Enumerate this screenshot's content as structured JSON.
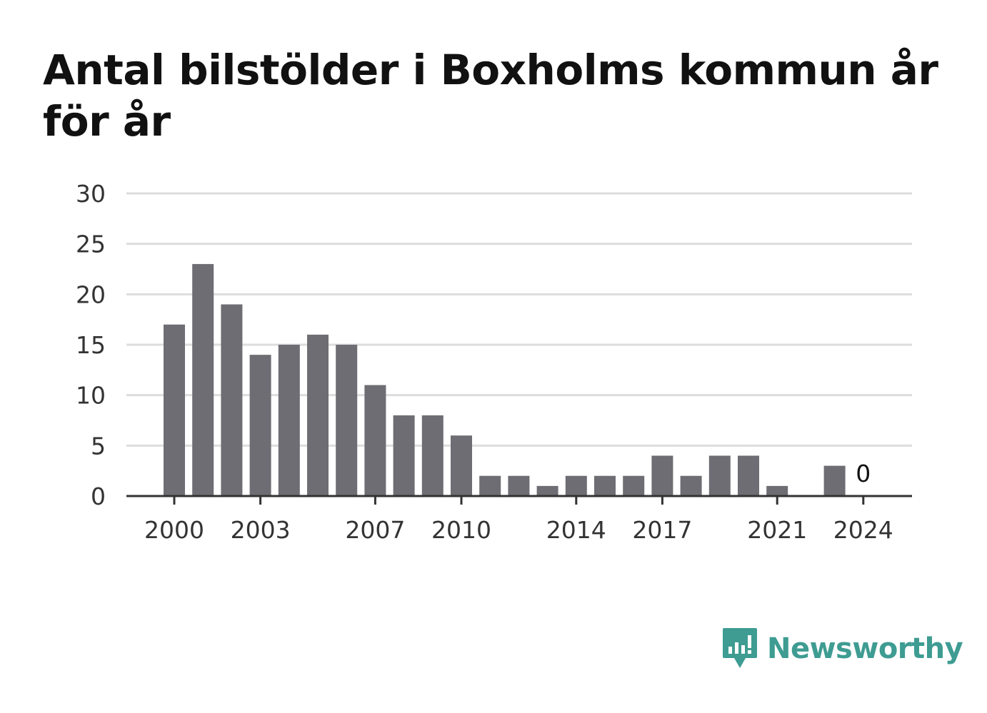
{
  "title": "Antal bilstölder i Boxholms kommun år för år",
  "brand": {
    "name": "Newsworthy",
    "color": "#3e9c92",
    "icon": "newsworthy-logo-icon"
  },
  "colors": {
    "bar": "#6e6d73",
    "grid": "#dddddd",
    "axis": "#333333"
  },
  "chart_data": {
    "type": "bar",
    "title": "Antal bilstölder i Boxholms kommun år för år",
    "xlabel": "",
    "ylabel": "",
    "categories": [
      2000,
      2001,
      2002,
      2003,
      2004,
      2005,
      2006,
      2007,
      2008,
      2009,
      2010,
      2011,
      2012,
      2013,
      2014,
      2015,
      2016,
      2017,
      2018,
      2019,
      2020,
      2021,
      2022,
      2023,
      2024
    ],
    "values": [
      17,
      23,
      19,
      14,
      15,
      16,
      15,
      11,
      8,
      8,
      6,
      2,
      2,
      1,
      2,
      2,
      2,
      4,
      2,
      4,
      4,
      1,
      0,
      3,
      0
    ],
    "ylim": [
      0,
      30
    ],
    "yticks": [
      "0",
      "5",
      "10",
      "15",
      "20",
      "25",
      "30"
    ],
    "xticks": [
      "2000",
      "2003",
      "2007",
      "2010",
      "2014",
      "2017",
      "2021",
      "2024"
    ],
    "annotations": [
      {
        "category": 2024,
        "label": "0"
      }
    ],
    "grid": true,
    "legend": "none"
  }
}
